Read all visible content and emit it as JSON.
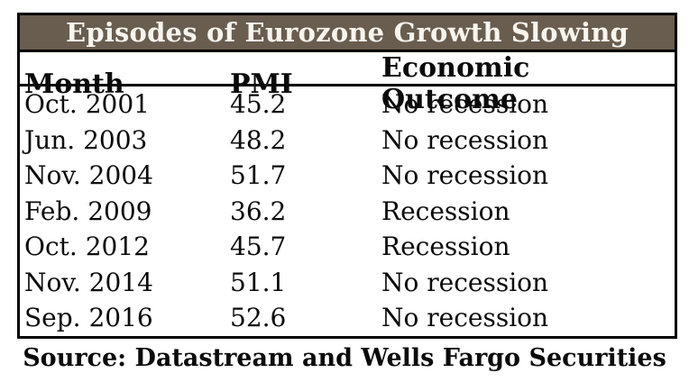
{
  "table": {
    "title": "Episodes of Eurozone Growth Slowing",
    "columns": {
      "month": "Month",
      "pmi": "PMI",
      "outcome": "Economic Outcome"
    },
    "rows": [
      {
        "month": "Oct. 2001",
        "pmi": "45.2",
        "outcome": "No recession"
      },
      {
        "month": "Jun. 2003",
        "pmi": "48.2",
        "outcome": "No recession"
      },
      {
        "month": "Nov. 2004",
        "pmi": "51.7",
        "outcome": "No recession"
      },
      {
        "month": "Feb. 2009",
        "pmi": "36.2",
        "outcome": "Recession"
      },
      {
        "month": "Oct. 2012",
        "pmi": "45.7",
        "outcome": "Recession"
      },
      {
        "month": "Nov. 2014",
        "pmi": "51.1",
        "outcome": "No recession"
      },
      {
        "month": "Sep. 2016",
        "pmi": "52.6",
        "outcome": "No recession"
      }
    ]
  },
  "source": "Source: Datastream and Wells Fargo Securities",
  "colors": {
    "title_band_bg": "#695d50",
    "title_text": "#f8f5ef",
    "border": "#000000",
    "body_text": "#0b0b0b"
  },
  "chart_data": {
    "type": "table",
    "title": "Episodes of Eurozone Growth Slowing",
    "columns": [
      "Month",
      "PMI",
      "Economic Outcome"
    ],
    "rows": [
      [
        "Oct. 2001",
        45.2,
        "No recession"
      ],
      [
        "Jun. 2003",
        48.2,
        "No recession"
      ],
      [
        "Nov. 2004",
        51.7,
        "No recession"
      ],
      [
        "Feb. 2009",
        36.2,
        "Recession"
      ],
      [
        "Oct. 2012",
        45.7,
        "Recession"
      ],
      [
        "Nov. 2014",
        51.1,
        "No recession"
      ],
      [
        "Sep. 2016",
        52.6,
        "No recession"
      ]
    ],
    "source": "Source: Datastream and Wells Fargo Securities"
  }
}
